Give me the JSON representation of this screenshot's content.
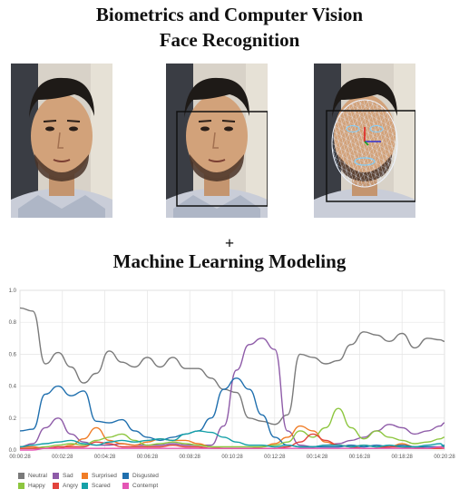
{
  "titles": {
    "line1": "Biometrics and Computer Vision",
    "line2": "Face Recognition",
    "plus": "+",
    "line3": "Machine Learning Modeling"
  },
  "photos": [
    {
      "name": "raw-face-photo",
      "overlay": "none"
    },
    {
      "name": "face-detection-photo",
      "overlay": "bounding-box"
    },
    {
      "name": "face-landmark-photo",
      "overlay": "landmark-mesh"
    }
  ],
  "chart_data": {
    "type": "line",
    "x_ticks": [
      "00:00:28",
      "00:02:28",
      "00:04:28",
      "00:06:28",
      "00:08:28",
      "00:10:28",
      "00:12:28",
      "00:14:28",
      "00:16:28",
      "00:18:28",
      "00:20:28"
    ],
    "y_ticks": [
      "0.0",
      "0.2",
      "0.4",
      "0.6",
      "0.8",
      "1.0"
    ],
    "ylim": [
      0,
      1
    ],
    "xlim": [
      0,
      20
    ],
    "grid": true,
    "legend_position": "bottom-left",
    "series": [
      {
        "name": "Neutral",
        "color": "#7a7a7a",
        "x": [
          0,
          0.6,
          1.2,
          1.8,
          2.4,
          3.0,
          3.6,
          4.2,
          4.8,
          5.4,
          6.0,
          6.6,
          7.2,
          7.8,
          8.4,
          9.0,
          9.6,
          10.2,
          10.8,
          11.4,
          12.0,
          12.6,
          13.2,
          13.8,
          14.4,
          15.0,
          15.6,
          16.2,
          16.8,
          17.4,
          18.0,
          18.6,
          19.2,
          19.8,
          20
        ],
        "y": [
          0.89,
          0.87,
          0.54,
          0.61,
          0.52,
          0.42,
          0.48,
          0.62,
          0.55,
          0.52,
          0.58,
          0.52,
          0.58,
          0.51,
          0.51,
          0.45,
          0.38,
          0.36,
          0.2,
          0.18,
          0.16,
          0.22,
          0.6,
          0.58,
          0.54,
          0.56,
          0.66,
          0.74,
          0.72,
          0.68,
          0.73,
          0.64,
          0.7,
          0.69,
          0.68
        ]
      },
      {
        "name": "Sad",
        "color": "#8e5ba8",
        "x": [
          0,
          0.6,
          1.2,
          1.8,
          2.4,
          3.0,
          3.6,
          4.2,
          4.8,
          5.4,
          6.0,
          6.6,
          7.2,
          7.8,
          8.4,
          9.0,
          9.6,
          10.2,
          10.8,
          11.4,
          12.0,
          12.6,
          13.2,
          13.8,
          14.4,
          15.0,
          15.6,
          16.2,
          16.8,
          17.4,
          18.0,
          18.6,
          19.2,
          19.8,
          20
        ],
        "y": [
          0.02,
          0.04,
          0.14,
          0.2,
          0.1,
          0.05,
          0.03,
          0.03,
          0.04,
          0.03,
          0.03,
          0.03,
          0.04,
          0.03,
          0.03,
          0.03,
          0.15,
          0.5,
          0.66,
          0.7,
          0.63,
          0.12,
          0.03,
          0.02,
          0.03,
          0.04,
          0.06,
          0.08,
          0.12,
          0.16,
          0.14,
          0.1,
          0.12,
          0.15,
          0.17
        ]
      },
      {
        "name": "Surprised",
        "color": "#f07c26",
        "x": [
          0,
          0.6,
          1.2,
          1.8,
          2.4,
          3.0,
          3.6,
          4.2,
          4.8,
          5.4,
          6.0,
          6.6,
          7.2,
          7.8,
          8.4,
          9.0,
          9.6,
          10.2,
          10.8,
          11.4,
          12.0,
          12.6,
          13.2,
          13.8,
          14.4,
          15.0,
          15.6,
          16.2,
          16.8,
          17.4,
          18.0,
          18.6,
          19.2,
          19.8,
          20
        ],
        "y": [
          0.02,
          0.02,
          0.01,
          0.01,
          0.03,
          0.07,
          0.14,
          0.06,
          0.04,
          0.03,
          0.05,
          0.07,
          0.06,
          0.06,
          0.04,
          0.02,
          0.01,
          0.01,
          0.01,
          0.02,
          0.04,
          0.08,
          0.15,
          0.12,
          0.05,
          0.03,
          0.02,
          0.03,
          0.02,
          0.02,
          0.04,
          0.02,
          0.01,
          0.01,
          0.02
        ]
      },
      {
        "name": "Disgusted",
        "color": "#1f6fae",
        "x": [
          0,
          0.6,
          1.2,
          1.8,
          2.4,
          3.0,
          3.6,
          4.2,
          4.8,
          5.4,
          6.0,
          6.6,
          7.2,
          7.8,
          8.4,
          9.0,
          9.6,
          10.2,
          10.8,
          11.4,
          12.0,
          12.6,
          13.2,
          13.8,
          14.4,
          15.0,
          15.6,
          16.2,
          16.8,
          17.4,
          18.0,
          18.6,
          19.2,
          19.8,
          20
        ],
        "y": [
          0.12,
          0.13,
          0.35,
          0.4,
          0.34,
          0.37,
          0.18,
          0.17,
          0.19,
          0.12,
          0.08,
          0.06,
          0.08,
          0.1,
          0.12,
          0.2,
          0.38,
          0.45,
          0.38,
          0.22,
          0.08,
          0.03,
          0.02,
          0.02,
          0.02,
          0.02,
          0.03,
          0.02,
          0.03,
          0.02,
          0.03,
          0.02,
          0.02,
          0.02,
          0.03
        ]
      },
      {
        "name": "Happy",
        "color": "#8dc63f",
        "x": [
          0,
          0.6,
          1.2,
          1.8,
          2.4,
          3.0,
          3.6,
          4.2,
          4.8,
          5.4,
          6.0,
          6.6,
          7.2,
          7.8,
          8.4,
          9.0,
          9.6,
          10.2,
          10.8,
          11.4,
          12.0,
          12.6,
          13.2,
          13.8,
          14.4,
          15.0,
          15.6,
          16.2,
          16.8,
          17.4,
          18.0,
          18.6,
          19.2,
          19.8,
          20
        ],
        "y": [
          0.01,
          0.01,
          0.02,
          0.03,
          0.04,
          0.03,
          0.06,
          0.08,
          0.1,
          0.06,
          0.03,
          0.04,
          0.05,
          0.04,
          0.03,
          0.02,
          0.02,
          0.02,
          0.02,
          0.02,
          0.03,
          0.05,
          0.12,
          0.08,
          0.14,
          0.26,
          0.14,
          0.07,
          0.12,
          0.08,
          0.06,
          0.04,
          0.05,
          0.07,
          0.08
        ]
      },
      {
        "name": "Angry",
        "color": "#e2433c",
        "x": [
          0,
          0.6,
          1.2,
          1.8,
          2.4,
          3.0,
          3.6,
          4.2,
          4.8,
          5.4,
          6.0,
          6.6,
          7.2,
          7.8,
          8.4,
          9.0,
          9.6,
          10.2,
          10.8,
          11.4,
          12.0,
          12.6,
          13.2,
          13.8,
          14.4,
          15.0,
          15.6,
          16.2,
          16.8,
          17.4,
          18.0,
          18.6,
          19.2,
          19.8,
          20
        ],
        "y": [
          0.01,
          0.01,
          0.01,
          0.02,
          0.02,
          0.02,
          0.05,
          0.04,
          0.02,
          0.02,
          0.02,
          0.02,
          0.03,
          0.02,
          0.02,
          0.01,
          0.01,
          0.01,
          0.01,
          0.01,
          0.01,
          0.02,
          0.05,
          0.1,
          0.06,
          0.03,
          0.02,
          0.01,
          0.01,
          0.02,
          0.02,
          0.01,
          0.01,
          0.01,
          0.01
        ]
      },
      {
        "name": "Scared",
        "color": "#14a0a8",
        "x": [
          0,
          0.6,
          1.2,
          1.8,
          2.4,
          3.0,
          3.6,
          4.2,
          4.8,
          5.4,
          6.0,
          6.6,
          7.2,
          7.8,
          8.4,
          9.0,
          9.6,
          10.2,
          10.8,
          11.4,
          12.0,
          12.6,
          13.2,
          13.8,
          14.4,
          15.0,
          15.6,
          16.2,
          16.8,
          17.4,
          18.0,
          18.6,
          19.2,
          19.8,
          20
        ],
        "y": [
          0.02,
          0.03,
          0.04,
          0.05,
          0.06,
          0.04,
          0.03,
          0.05,
          0.06,
          0.05,
          0.06,
          0.07,
          0.06,
          0.1,
          0.12,
          0.11,
          0.08,
          0.05,
          0.03,
          0.03,
          0.02,
          0.03,
          0.02,
          0.02,
          0.03,
          0.03,
          0.02,
          0.03,
          0.02,
          0.03,
          0.02,
          0.02,
          0.03,
          0.04,
          0.02
        ]
      },
      {
        "name": "Contempt",
        "color": "#e455b4",
        "x": [
          0,
          0.6,
          1.2,
          1.8,
          2.4,
          3.0,
          3.6,
          4.2,
          4.8,
          5.4,
          6.0,
          6.6,
          7.2,
          7.8,
          8.4,
          9.0,
          9.6,
          10.2,
          10.8,
          11.4,
          12.0,
          12.6,
          13.2,
          13.8,
          14.4,
          15.0,
          15.6,
          16.2,
          16.8,
          17.4,
          18.0,
          18.6,
          19.2,
          19.8,
          20
        ],
        "y": [
          0.0,
          0.0,
          0.01,
          0.01,
          0.01,
          0.01,
          0.01,
          0.01,
          0.01,
          0.01,
          0.01,
          0.01,
          0.01,
          0.01,
          0.01,
          0.01,
          0.01,
          0.01,
          0.01,
          0.01,
          0.01,
          0.01,
          0.01,
          0.01,
          0.01,
          0.01,
          0.01,
          0.01,
          0.01,
          0.01,
          0.01,
          0.01,
          0.01,
          0.02,
          0.01
        ]
      }
    ]
  }
}
